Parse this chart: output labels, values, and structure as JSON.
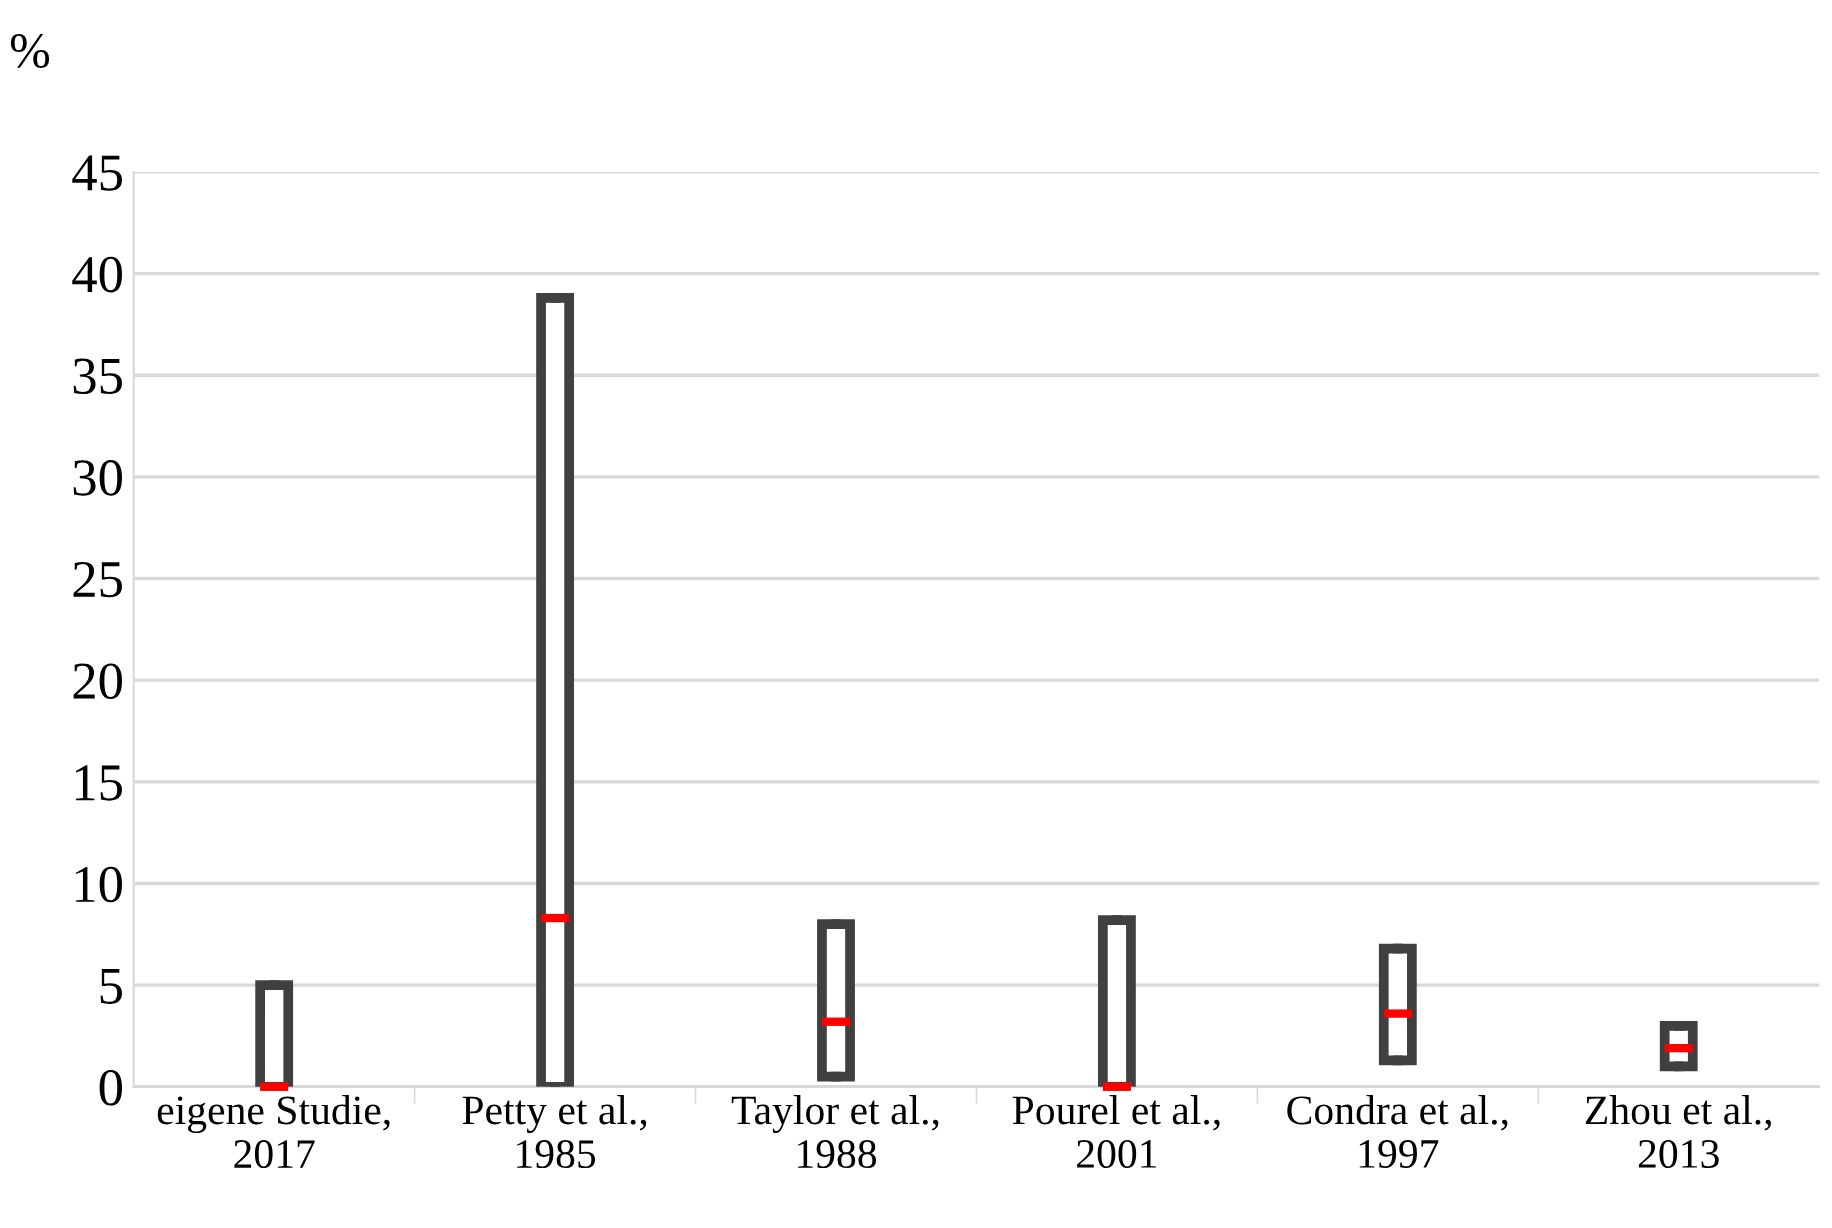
{
  "chart_data": {
    "type": "box",
    "ylabel": "%",
    "categories": [
      "eigene Studie,\n2017",
      "Petty et al.,\n1985",
      "Taylor et al.,\n1988",
      "Pourel et al.,\n2001",
      "Condra et al.,\n1997",
      "Zhou et al.,\n2013"
    ],
    "series": [
      {
        "color": "#404040",
        "boxes": [
          {
            "low": 0,
            "q1": 0,
            "median": 0,
            "q3": 5,
            "high": 5
          },
          {
            "low": 0,
            "q1": 0,
            "median": 8.3,
            "q3": 38.8,
            "high": 38.8
          },
          {
            "low": 0.5,
            "q1": 0.5,
            "median": 3.2,
            "q3": 8,
            "high": 8
          },
          {
            "low": 0,
            "q1": 0,
            "median": 0,
            "q3": 8.2,
            "high": 8.2
          },
          {
            "low": 1.3,
            "q1": 1.3,
            "median": 3.6,
            "q3": 6.8,
            "high": 6.8
          },
          {
            "low": 1,
            "q1": 1,
            "median": 1.9,
            "q3": 3,
            "high": 3
          }
        ]
      }
    ],
    "ylim": [
      0,
      45
    ],
    "yticks": [
      0,
      5,
      10,
      15,
      20,
      25,
      30,
      35,
      40,
      45
    ],
    "grid": "y",
    "legend": false
  }
}
